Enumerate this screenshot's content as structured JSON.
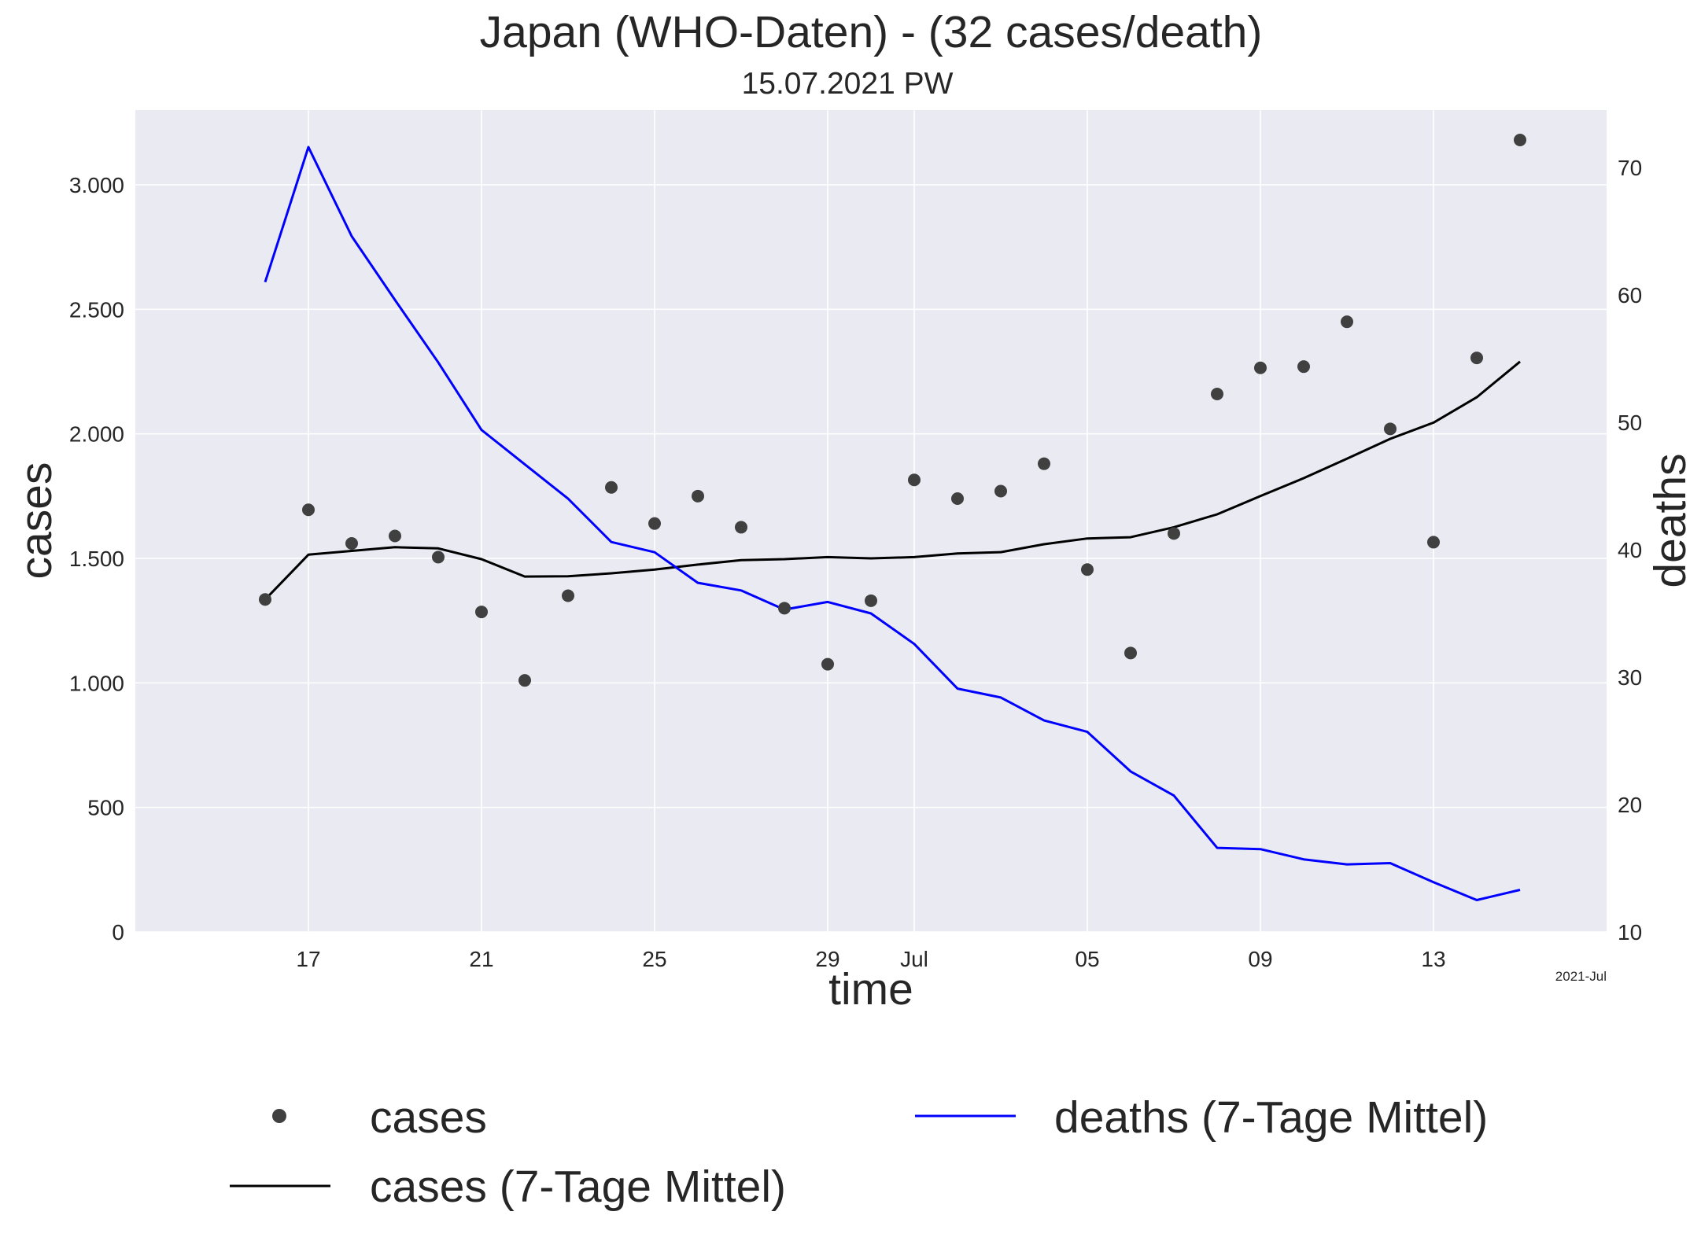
{
  "chart_data": {
    "type": "line",
    "title": "Japan (WHO-Daten) - (32 cases/death)",
    "subtitle": "15.07.2021 PW",
    "xlabel": "time",
    "ylabel_left": "cases",
    "ylabel_right": "deaths",
    "x_offset_label": "2021-Jul",
    "x": [
      "2021-06-16",
      "2021-06-17",
      "2021-06-18",
      "2021-06-19",
      "2021-06-20",
      "2021-06-21",
      "2021-06-22",
      "2021-06-23",
      "2021-06-24",
      "2021-06-25",
      "2021-06-26",
      "2021-06-27",
      "2021-06-28",
      "2021-06-29",
      "2021-06-30",
      "2021-07-01",
      "2021-07-02",
      "2021-07-03",
      "2021-07-04",
      "2021-07-05",
      "2021-07-06",
      "2021-07-07",
      "2021-07-08",
      "2021-07-09",
      "2021-07-10",
      "2021-07-11",
      "2021-07-12",
      "2021-07-13",
      "2021-07-14",
      "2021-07-15"
    ],
    "x_range": [
      "2021-06-13",
      "2021-07-17"
    ],
    "x_ticks": [
      {
        "date": "2021-06-17",
        "label": "17"
      },
      {
        "date": "2021-06-21",
        "label": "21"
      },
      {
        "date": "2021-06-25",
        "label": "25"
      },
      {
        "date": "2021-06-29",
        "label": "29"
      },
      {
        "date": "2021-07-01",
        "label": "Jul"
      },
      {
        "date": "2021-07-05",
        "label": "05"
      },
      {
        "date": "2021-07-09",
        "label": "09"
      },
      {
        "date": "2021-07-13",
        "label": "13"
      }
    ],
    "ylim_left": [
      0,
      3300
    ],
    "yticks_left": [
      {
        "value": 0,
        "label": "0"
      },
      {
        "value": 500,
        "label": "500"
      },
      {
        "value": 1000,
        "label": "1.000"
      },
      {
        "value": 1500,
        "label": "1.500"
      },
      {
        "value": 2000,
        "label": "2.000"
      },
      {
        "value": 2500,
        "label": "2.500"
      },
      {
        "value": 3000,
        "label": "3.000"
      }
    ],
    "ylim_right": [
      10,
      74.5
    ],
    "yticks_right": [
      {
        "value": 10,
        "label": "10"
      },
      {
        "value": 20,
        "label": "20"
      },
      {
        "value": 30,
        "label": "30"
      },
      {
        "value": 40,
        "label": "40"
      },
      {
        "value": 50,
        "label": "50"
      },
      {
        "value": 60,
        "label": "60"
      },
      {
        "value": 70,
        "label": "70"
      }
    ],
    "grid": true,
    "legend_position": "bottom",
    "series": [
      {
        "name": "cases",
        "kind": "scatter",
        "axis": "left",
        "color": "#404040",
        "values": [
          1335,
          1695,
          1560,
          1590,
          1505,
          1285,
          1010,
          1350,
          1785,
          1640,
          1750,
          1625,
          1300,
          1075,
          1330,
          1815,
          1740,
          1770,
          1880,
          1455,
          1120,
          1600,
          2160,
          2265,
          2270,
          2450,
          2020,
          1565,
          2305,
          3180
        ]
      },
      {
        "name": "cases (7-Tage Mittel)",
        "kind": "line",
        "axis": "left",
        "color": "#000000",
        "values": [
          1335,
          1515,
          1530,
          1545,
          1540,
          1497,
          1427,
          1428,
          1440,
          1455,
          1475,
          1493,
          1497,
          1505,
          1500,
          1505,
          1520,
          1525,
          1557,
          1580,
          1585,
          1625,
          1677,
          1750,
          1822,
          1900,
          1980,
          2045,
          2147,
          2290
        ]
      },
      {
        "name": "deaths (7-Tage Mittel)",
        "kind": "line",
        "axis": "right",
        "color": "#0000ff",
        "values": [
          61.0,
          71.6,
          64.6,
          59.6,
          54.7,
          49.4,
          46.7,
          44.0,
          40.6,
          39.8,
          37.4,
          36.8,
          35.3,
          35.9,
          35.0,
          32.6,
          29.1,
          28.4,
          26.6,
          25.7,
          22.6,
          20.7,
          16.6,
          16.5,
          15.7,
          15.3,
          15.4,
          13.9,
          12.5,
          13.3
        ]
      }
    ]
  },
  "colors": {
    "plot_background": "#eaeaf2",
    "grid": "#ffffff",
    "text": "#262626",
    "deaths_axis_label": "#0000ff"
  }
}
